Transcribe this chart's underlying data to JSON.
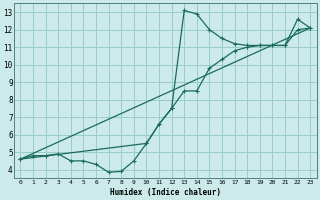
{
  "xlabel": "Humidex (Indice chaleur)",
  "bg_color": "#cceaea",
  "grid_color": "#99cccc",
  "line_color": "#1a6b5a",
  "xlim": [
    -0.5,
    23.5
  ],
  "ylim": [
    3.5,
    13.5
  ],
  "xticks": [
    0,
    1,
    2,
    3,
    4,
    5,
    6,
    7,
    8,
    9,
    10,
    11,
    12,
    13,
    14,
    15,
    16,
    17,
    18,
    19,
    20,
    21,
    22,
    23
  ],
  "yticks": [
    4,
    5,
    6,
    7,
    8,
    9,
    10,
    11,
    12,
    13
  ],
  "line1_x": [
    0,
    1,
    2,
    3,
    4,
    5,
    6,
    7,
    8,
    9,
    10,
    11,
    12,
    13,
    14,
    15,
    16,
    17,
    18,
    19,
    20,
    21,
    22,
    23
  ],
  "line1_y": [
    4.6,
    4.8,
    4.8,
    4.9,
    4.5,
    4.5,
    4.3,
    3.85,
    3.9,
    4.5,
    5.5,
    6.6,
    7.5,
    13.1,
    12.9,
    12.0,
    11.5,
    11.2,
    11.1,
    11.1,
    11.1,
    11.1,
    12.6,
    12.1
  ],
  "line2_x": [
    0,
    10,
    11,
    12,
    13,
    14,
    15,
    16,
    17,
    18,
    19,
    20,
    21,
    22,
    23
  ],
  "line2_y": [
    4.6,
    5.5,
    6.6,
    7.5,
    8.5,
    8.5,
    9.8,
    10.3,
    10.8,
    11.0,
    11.1,
    11.1,
    11.1,
    12.0,
    12.1
  ],
  "line3_x": [
    0,
    23
  ],
  "line3_y": [
    4.6,
    12.1
  ]
}
